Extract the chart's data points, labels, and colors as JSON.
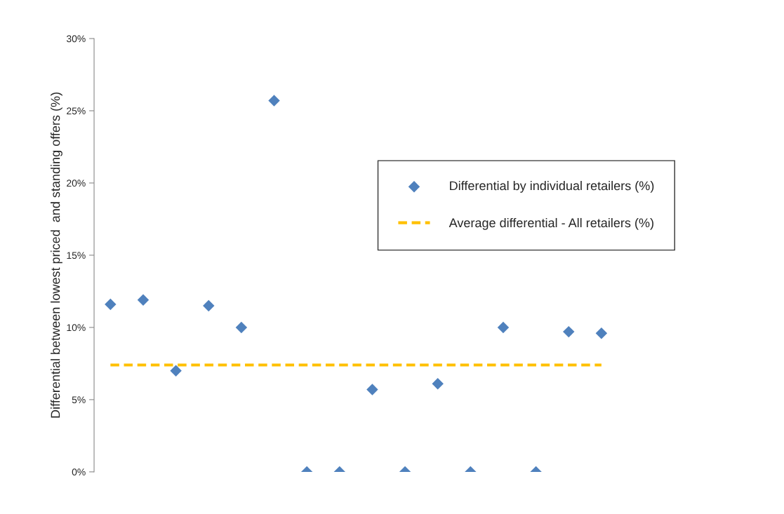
{
  "chart_data": {
    "type": "scatter",
    "ylabel": "Differential between lowest priced  and standing offers (%)",
    "categories": [
      null,
      null,
      null,
      null,
      null,
      null,
      null,
      null,
      null,
      null,
      null,
      null,
      null,
      null,
      null,
      null
    ],
    "series": [
      {
        "name": "Differential by individual retailers (%)",
        "color": "#4f81bd",
        "marker": "diamond",
        "values": [
          11.6,
          11.9,
          7.0,
          11.5,
          10.0,
          25.7,
          0,
          0,
          5.7,
          0,
          6.1,
          0,
          10.0,
          0,
          9.7,
          9.6
        ]
      },
      {
        "name": "Average differential - All retailers (%)",
        "type": "line",
        "color": "#ffc000",
        "line_style": "dashed",
        "marker": "none",
        "values": [
          7.4,
          7.4,
          7.4,
          7.4,
          7.4,
          7.4,
          7.4,
          7.4,
          7.4,
          7.4,
          7.4,
          7.4,
          7.4,
          7.4,
          7.4,
          7.4
        ]
      }
    ],
    "ylim": [
      0,
      30
    ],
    "yticks": [
      {
        "value": 0,
        "label": "0%"
      },
      {
        "value": 5,
        "label": "5%"
      },
      {
        "value": 10,
        "label": "10%"
      },
      {
        "value": 15,
        "label": "15%"
      },
      {
        "value": 20,
        "label": "20%"
      },
      {
        "value": 25,
        "label": "25%"
      },
      {
        "value": 30,
        "label": "30%"
      }
    ],
    "tick_labels": "y",
    "grid": false,
    "legend": "right"
  }
}
